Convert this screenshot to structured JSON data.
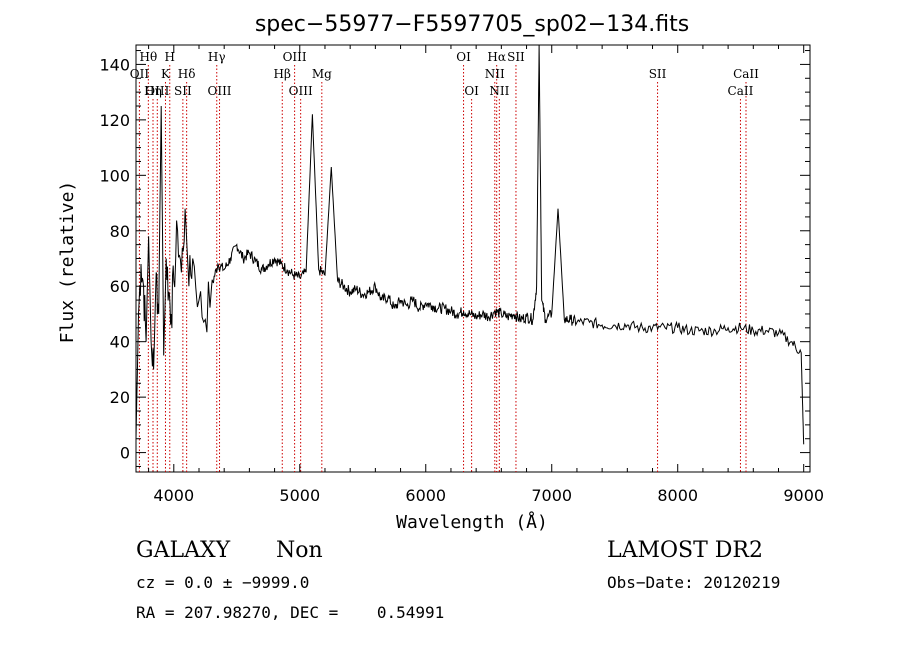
{
  "chart_data": {
    "type": "line",
    "title": "spec−55977−F5597705_sp02−134.fits",
    "xlabel": "Wavelength (Å)",
    "ylabel": "Flux (relative)",
    "xlim": [
      3700,
      9050
    ],
    "ylim": [
      -7,
      147
    ],
    "xticks": [
      4000,
      5000,
      6000,
      7000,
      8000,
      9000
    ],
    "yticks": [
      0,
      20,
      40,
      60,
      80,
      100,
      120,
      140
    ],
    "grid": false,
    "legend": "none",
    "line_color": "#000000",
    "marker_color": "#cc0000",
    "spectral_lines": [
      {
        "label": "Hθ",
        "x": 3798,
        "row": 1
      },
      {
        "label": "OII",
        "x": 3727,
        "row": 2
      },
      {
        "label": "OIII",
        "x": 3869,
        "row": 3
      },
      {
        "label": "Hη",
        "x": 3835,
        "row": 3
      },
      {
        "label": "H",
        "x": 3968,
        "row": 1
      },
      {
        "label": "K",
        "x": 3934,
        "row": 2
      },
      {
        "label": "Hδ",
        "x": 4102,
        "row": 2
      },
      {
        "label": "SII",
        "x": 4072,
        "row": 3
      },
      {
        "label": "Hγ",
        "x": 4341,
        "row": 1
      },
      {
        "label": "OIII",
        "x": 4363,
        "row": 3
      },
      {
        "label": "OIII",
        "x": 4959,
        "row": 1
      },
      {
        "label": "Hβ",
        "x": 4861,
        "row": 2
      },
      {
        "label": "Mg",
        "x": 5175,
        "row": 2
      },
      {
        "label": "OIII",
        "x": 5007,
        "row": 3
      },
      {
        "label": "OI",
        "x": 6300,
        "row": 1
      },
      {
        "label": "OI",
        "x": 6364,
        "row": 3
      },
      {
        "label": "Hα",
        "x": 6563,
        "row": 1
      },
      {
        "label": "SII",
        "x": 6716,
        "row": 1
      },
      {
        "label": "NII",
        "x": 6548,
        "row": 2
      },
      {
        "label": "NII",
        "x": 6584,
        "row": 3
      },
      {
        "label": "SII",
        "x": 7840,
        "row": 2
      },
      {
        "label": "CaII",
        "x": 8542,
        "row": 2
      },
      {
        "label": "CaII",
        "x": 8498,
        "row": 3
      }
    ],
    "series": [
      {
        "x": [
          3700,
          3720,
          3740,
          3760,
          3780,
          3800,
          3820,
          3840,
          3860,
          3880,
          3900,
          3920,
          3940,
          3960,
          3980,
          4000,
          4030,
          4060,
          4090,
          4120,
          4150,
          4200,
          4250,
          4300,
          4350,
          4400,
          4450,
          4500,
          4550,
          4600,
          4650,
          4700,
          4750,
          4800,
          4850,
          4900,
          4950,
          5000,
          5050,
          5100,
          5150,
          5200,
          5250,
          5300,
          5350,
          5400,
          5450,
          5500,
          5550,
          5600,
          5650,
          5700,
          5750,
          5800,
          5850,
          5900,
          5950,
          6000,
          6050,
          6100,
          6150,
          6200,
          6250,
          6300,
          6350,
          6400,
          6450,
          6500,
          6550,
          6600,
          6650,
          6700,
          6750,
          6800,
          6850,
          6880,
          6900,
          6920,
          6950,
          7000,
          7050,
          7100,
          7150,
          7200,
          7300,
          7400,
          7500,
          7600,
          7700,
          7800,
          7900,
          8000,
          8100,
          8200,
          8300,
          8400,
          8500,
          8600,
          8700,
          8800,
          8900,
          8980,
          9000
        ],
        "y": [
          5,
          50,
          68,
          60,
          40,
          78,
          40,
          30,
          65,
          50,
          125,
          35,
          70,
          58,
          50,
          62,
          80,
          65,
          88,
          60,
          70,
          55,
          48,
          60,
          68,
          66,
          70,
          75,
          70,
          72,
          69,
          66,
          68,
          70,
          68,
          66,
          64,
          63,
          65,
          122,
          66,
          64,
          103,
          62,
          60,
          58,
          59,
          57,
          58,
          60,
          55,
          56,
          52,
          55,
          53,
          55,
          52,
          54,
          53,
          52,
          52,
          51,
          50,
          51,
          50,
          49,
          50,
          49,
          51,
          50,
          49,
          50,
          48,
          49,
          48,
          60,
          147,
          55,
          48,
          50,
          88,
          48,
          48,
          47,
          47,
          46,
          46,
          46,
          45,
          45,
          45,
          45,
          44,
          44,
          44,
          45,
          45,
          44,
          44,
          43,
          40,
          36,
          3
        ]
      }
    ]
  },
  "info": {
    "object_class": "GALAXY",
    "subclass": "Non",
    "survey": "LAMOST DR2",
    "redshift_line": "cz = 0.0 ± −9999.0",
    "obs_date_line": "Obs−Date: 20120219",
    "coords_line": "RA = 207.98270, DEC =    0.54991"
  }
}
